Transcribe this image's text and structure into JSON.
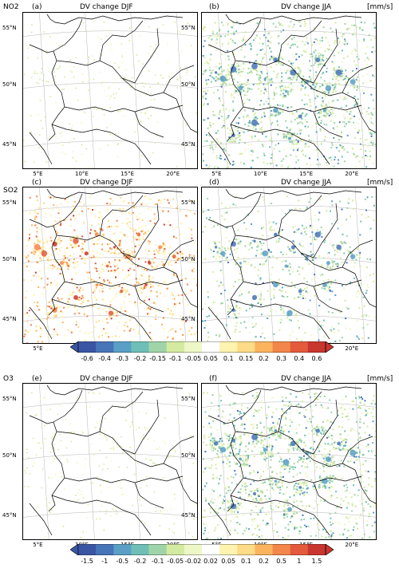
{
  "rows": [
    {
      "species": "NO2",
      "panels": [
        {
          "letter": "(a)",
          "title": "DV change DJF",
          "unit": "",
          "style": "sparse"
        },
        {
          "letter": "(b)",
          "title": "DV change  JJA",
          "unit": "[mm/s]",
          "style": "dense-negative"
        }
      ]
    },
    {
      "species": "SO2",
      "panels": [
        {
          "letter": "(c)",
          "title": "DV change DJF",
          "unit": "",
          "style": "positive"
        },
        {
          "letter": "(d)",
          "title": "DV change  JJA",
          "unit": "[mm/s]",
          "style": "medium-negative"
        }
      ]
    },
    {
      "species": "O3",
      "panels": [
        {
          "letter": "(e)",
          "title": "DV change DJF",
          "unit": "",
          "style": "sparse"
        },
        {
          "letter": "(f)",
          "title": "DV change  JJA",
          "unit": "[mm/s]",
          "style": "dense-negative"
        }
      ]
    }
  ],
  "lat_labels": [
    "55°N",
    "50°N",
    "45°N"
  ],
  "lon_labels": [
    "5°E",
    "10°E",
    "15°E",
    "20°E"
  ],
  "colorbar_top": {
    "labels": [
      "-0.6",
      "-0.4",
      "-0.3",
      "-0.2",
      "-0.15",
      "-0.1",
      "-0.05",
      "0.05",
      "0.1",
      "0.15",
      "0.2",
      "0.3",
      "0.4",
      "0.6"
    ]
  },
  "colorbar_bottom": {
    "labels": [
      "-1.5",
      "-1",
      "-0.5",
      "-0.2",
      "-0.1",
      "-0.05",
      "-0.02",
      "0.02",
      "0.05",
      "0.1",
      "0.2",
      "0.5",
      "1",
      "1.5"
    ]
  },
  "colors": {
    "scale": [
      "#3a55a3",
      "#4874b8",
      "#5a9fc6",
      "#6fbfb7",
      "#9fd4a9",
      "#d3eaa1",
      "#eef7c6",
      "#ffffff",
      "#fff3b0",
      "#fddb87",
      "#fbb35e",
      "#f3864a",
      "#e35a3c",
      "#c9362f"
    ],
    "border": "#000000",
    "grid": "#b5b5b5"
  }
}
